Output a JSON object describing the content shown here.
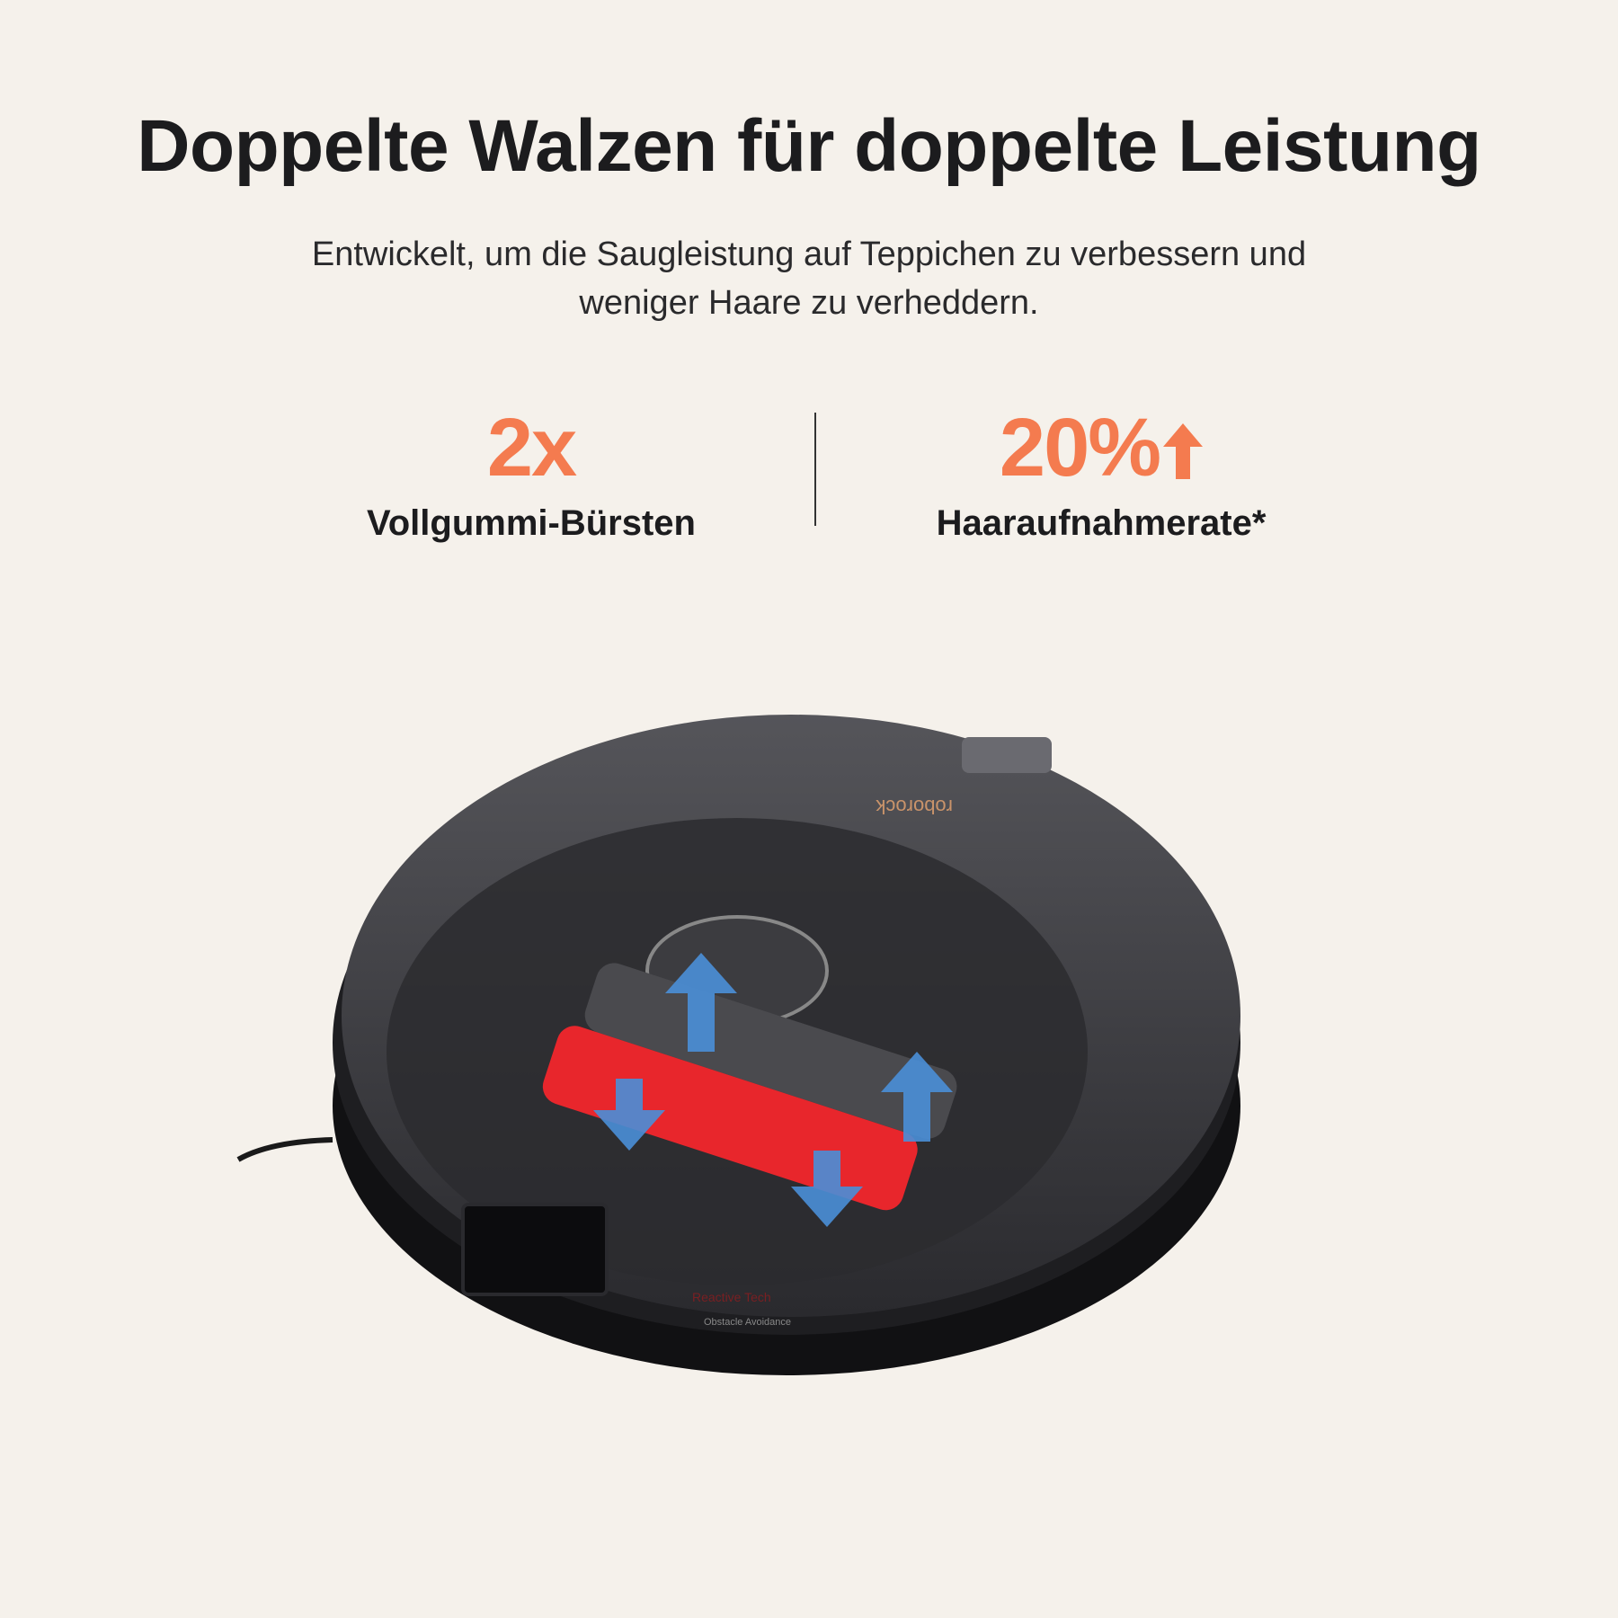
{
  "header": {
    "title": "Doppelte Walzen für doppelte Leistung",
    "subtitle_line1": "Entwickelt, um die Saugleistung auf Teppichen zu verbessern und",
    "subtitle_line2": "weniger Haare zu verheddern."
  },
  "stats": [
    {
      "value": "2x",
      "label": "Vollgummi-Bürsten"
    },
    {
      "value": "20%",
      "icon": "arrow-up-icon",
      "label": "Haaraufnahmerate*"
    }
  ],
  "product": {
    "brand": "roborock",
    "badge_line1": "Reactive Tech",
    "badge_line2": "Obstacle Avoidance"
  },
  "colors": {
    "accent": "#f47b4f",
    "background": "#f5f1eb",
    "brush": "#e8262c",
    "arrow": "#4a8fd8"
  }
}
